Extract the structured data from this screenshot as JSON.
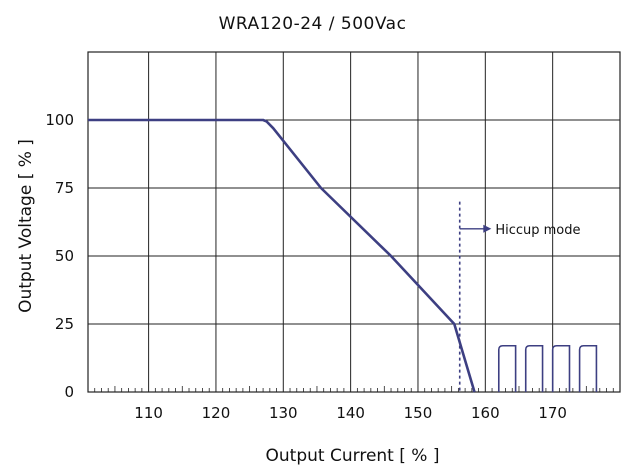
{
  "chart_data": {
    "type": "line",
    "title": "WRA120-24 / 500Vac",
    "xlabel": "Output Current [ % ]",
    "ylabel": "Output Voltage  [ % ]",
    "xlim": [
      101,
      180
    ],
    "ylim": [
      0,
      125
    ],
    "xticks": [
      110,
      120,
      130,
      140,
      150,
      160,
      170
    ],
    "yticks": [
      0,
      25,
      50,
      75,
      100
    ],
    "grid": true,
    "line_color": "#3d3f82",
    "series": [
      {
        "values": [
          {
            "x": 101,
            "y": 100
          },
          {
            "x": 127,
            "y": 100
          },
          {
            "x": 127.5,
            "y": 99.5
          },
          {
            "x": 128.5,
            "y": 97
          },
          {
            "x": 135.6,
            "y": 75
          },
          {
            "x": 146,
            "y": 50
          },
          {
            "x": 155.4,
            "y": 25
          },
          {
            "x": 158.4,
            "y": 0
          }
        ]
      }
    ],
    "hiccup_pulses": [
      {
        "x_start": 162.0,
        "x_end": 164.5,
        "y": 17
      },
      {
        "x_start": 166.0,
        "x_end": 168.5,
        "y": 17
      },
      {
        "x_start": 170.0,
        "x_end": 172.5,
        "y": 17
      },
      {
        "x_start": 174.0,
        "x_end": 176.5,
        "y": 17
      }
    ],
    "annotation": {
      "text": "Hiccup mode",
      "x": 156.2,
      "y_top": 70,
      "arrow_x_end": 160,
      "arrow_y": 60
    }
  }
}
